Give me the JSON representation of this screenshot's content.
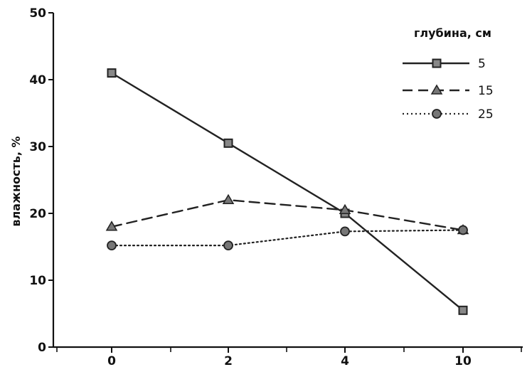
{
  "chart_data": {
    "type": "line",
    "title": "",
    "xlabel": "",
    "ylabel": "влажность, %",
    "categories": [
      "0",
      "2",
      "4",
      "10"
    ],
    "ylim": [
      0,
      50
    ],
    "yticks": [
      "0",
      "10",
      "20",
      "30",
      "40",
      "50"
    ],
    "grid": false,
    "legend": {
      "title": "глубина, см",
      "placement": "top-right"
    },
    "series": [
      {
        "name": "5",
        "values": [
          41,
          30.5,
          20,
          5.5
        ],
        "marker": "square",
        "line_style": "solid",
        "color": "#222222"
      },
      {
        "name": "15",
        "values": [
          18,
          22,
          20.5,
          17.5
        ],
        "marker": "triangle",
        "line_style": "dashed",
        "color": "#222222"
      },
      {
        "name": "25",
        "values": [
          15.2,
          15.2,
          17.3,
          17.5
        ],
        "marker": "circle",
        "line_style": "dotted",
        "color": "#222222"
      }
    ]
  }
}
